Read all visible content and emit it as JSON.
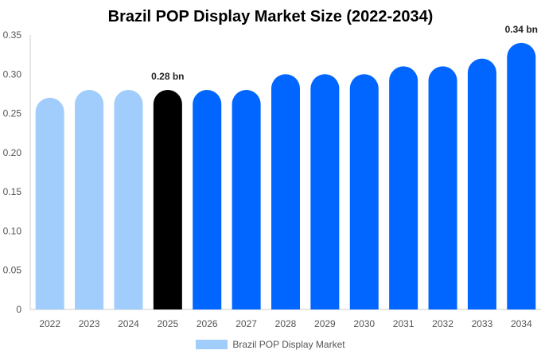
{
  "chart_data": {
    "type": "bar",
    "title": "Brazil POP Display Market Size (2022-2034)",
    "xlabel": "",
    "ylabel": "",
    "categories": [
      "2022",
      "2023",
      "2024",
      "2025",
      "2026",
      "2027",
      "2028",
      "2029",
      "2030",
      "2031",
      "2032",
      "2033",
      "2034"
    ],
    "series": [
      {
        "name": "Brazil POP Display Market",
        "values": [
          0.27,
          0.28,
          0.28,
          0.28,
          0.28,
          0.28,
          0.3,
          0.3,
          0.3,
          0.31,
          0.31,
          0.32,
          0.34
        ]
      }
    ],
    "ylim": [
      0,
      0.35
    ],
    "yticks": [
      "0",
      "0.05",
      "0.10",
      "0.15",
      "0.20",
      "0.25",
      "0.30",
      "0.35"
    ],
    "ytick_values": [
      0,
      0.05,
      0.1,
      0.15,
      0.2,
      0.25,
      0.3,
      0.35
    ],
    "annotations": [
      {
        "index": 3,
        "text": "0.28 bn"
      },
      {
        "index": 12,
        "text": "0.34 bn"
      }
    ],
    "grid": false,
    "legend_position": "bottom",
    "colors": {
      "historic": "#a0cdfc",
      "current": "#000000",
      "forecast": "#0066ff"
    },
    "bar_color_groups": [
      "historic",
      "historic",
      "historic",
      "current",
      "forecast",
      "forecast",
      "forecast",
      "forecast",
      "forecast",
      "forecast",
      "forecast",
      "forecast",
      "forecast"
    ]
  }
}
